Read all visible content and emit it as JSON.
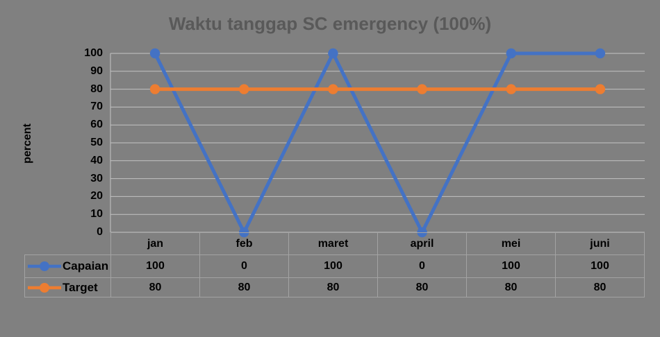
{
  "colors": {
    "background": "#808080",
    "title_text": "#595959",
    "gridline": "#c3c3c3",
    "table_border": "#a3a3a3",
    "axis_text": "#000000",
    "capaian": "#4472c4",
    "target": "#ed7d31"
  },
  "chart_data": {
    "type": "line",
    "title": "Waktu tanggap SC emergency (100%)",
    "xlabel": "",
    "ylabel": "percent",
    "categories": [
      "jan",
      "feb",
      "maret",
      "april",
      "mei",
      "juni"
    ],
    "series": [
      {
        "name": "Capaian",
        "color": "#4472c4",
        "marker": "circle",
        "values": [
          100,
          0,
          100,
          0,
          100,
          100
        ]
      },
      {
        "name": "Target",
        "color": "#ed7d31",
        "marker": "circle",
        "values": [
          80,
          80,
          80,
          80,
          80,
          80
        ]
      }
    ],
    "ylim": [
      0,
      100
    ],
    "ytick_step": 10,
    "yticks": [
      0,
      10,
      20,
      30,
      40,
      50,
      60,
      70,
      80,
      90,
      100
    ],
    "grid": true,
    "legend_position": "data-table-left",
    "show_data_table": true
  }
}
